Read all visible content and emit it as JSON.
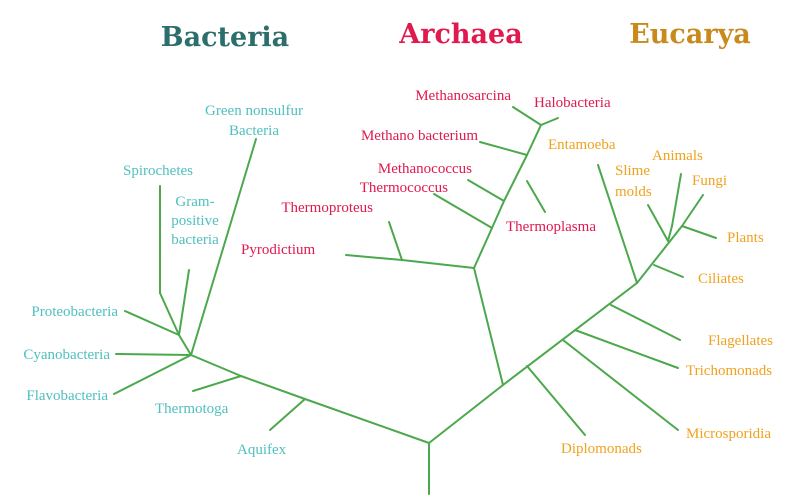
{
  "colors": {
    "branch": "#4ca84c",
    "bacteria_title": "#2b6e6b",
    "bacteria": "#4fbfbf",
    "archaea": "#e0194f",
    "eucarya_title": "#c98a1c",
    "eucarya": "#f0a21e"
  },
  "domains": {
    "bacteria": "Bacteria",
    "archaea": "Archaea",
    "eucarya": "Eucarya"
  },
  "bacteria": {
    "green_nonsulfur_1": "Green nonsulfur",
    "green_nonsulfur_2": "Bacteria",
    "spirochetes": "Spirochetes",
    "gram_1": "Gram-",
    "gram_2": "positive",
    "gram_3": "bacteria",
    "proteobacteria": "Proteobacteria",
    "cyanobacteria": "Cyanobacteria",
    "flavobacteria": "Flavobacteria",
    "thermotoga": "Thermotoga",
    "aquifex": "Aquifex"
  },
  "archaea": {
    "methanosarcina": "Methanosarcina",
    "halobacteria": "Halobacteria",
    "methanobacterium": "Methano bacterium",
    "methanococcus": "Methanococcus",
    "thermococcus": "Thermococcus",
    "thermoproteus": "Thermoproteus",
    "thermoplasma": "Thermoplasma",
    "pyrodictium": "Pyrodictium"
  },
  "eucarya": {
    "entamoeba": "Entamoeba",
    "slime_1": "Slime",
    "slime_2": "molds",
    "animals": "Animals",
    "fungi": "Fungi",
    "plants": "Plants",
    "ciliates": "Ciliates",
    "flagellates": "Flagellates",
    "trichomonads": "Trichomonads",
    "microsporidia": "Microsporidia",
    "diplomonads": "Diplomonads"
  }
}
